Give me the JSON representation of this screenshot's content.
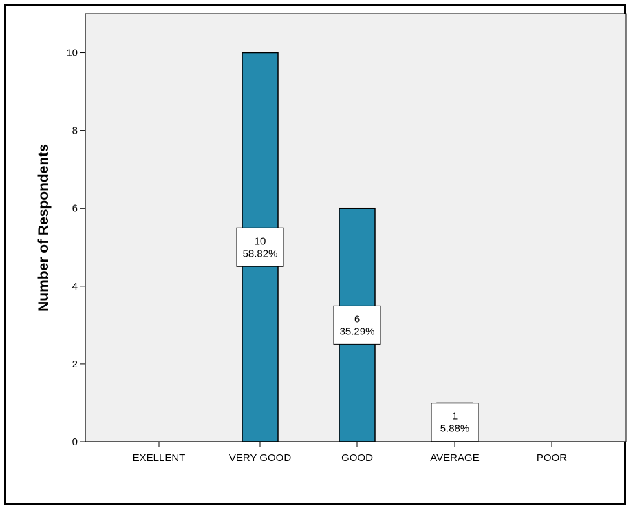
{
  "chart_data": {
    "type": "bar",
    "ylabel": "Number of Respondents",
    "xlabel": "",
    "categories": [
      "EXELLENT",
      "VERY GOOD",
      "GOOD",
      "AVERAGE",
      "POOR"
    ],
    "values": [
      0,
      10,
      6,
      1,
      0
    ],
    "labels": [
      null,
      {
        "count": "10",
        "percent": "58.82%"
      },
      {
        "count": "6",
        "percent": "35.29%"
      },
      {
        "count": "1",
        "percent": "5.88%"
      },
      null
    ],
    "yticks": [
      "0",
      "2",
      "4",
      "6",
      "8",
      "10"
    ],
    "ylim": [
      0,
      11
    ],
    "grid": false,
    "colors": {
      "bar": "#248AAE",
      "plot_background": "#F0F0F0"
    }
  }
}
